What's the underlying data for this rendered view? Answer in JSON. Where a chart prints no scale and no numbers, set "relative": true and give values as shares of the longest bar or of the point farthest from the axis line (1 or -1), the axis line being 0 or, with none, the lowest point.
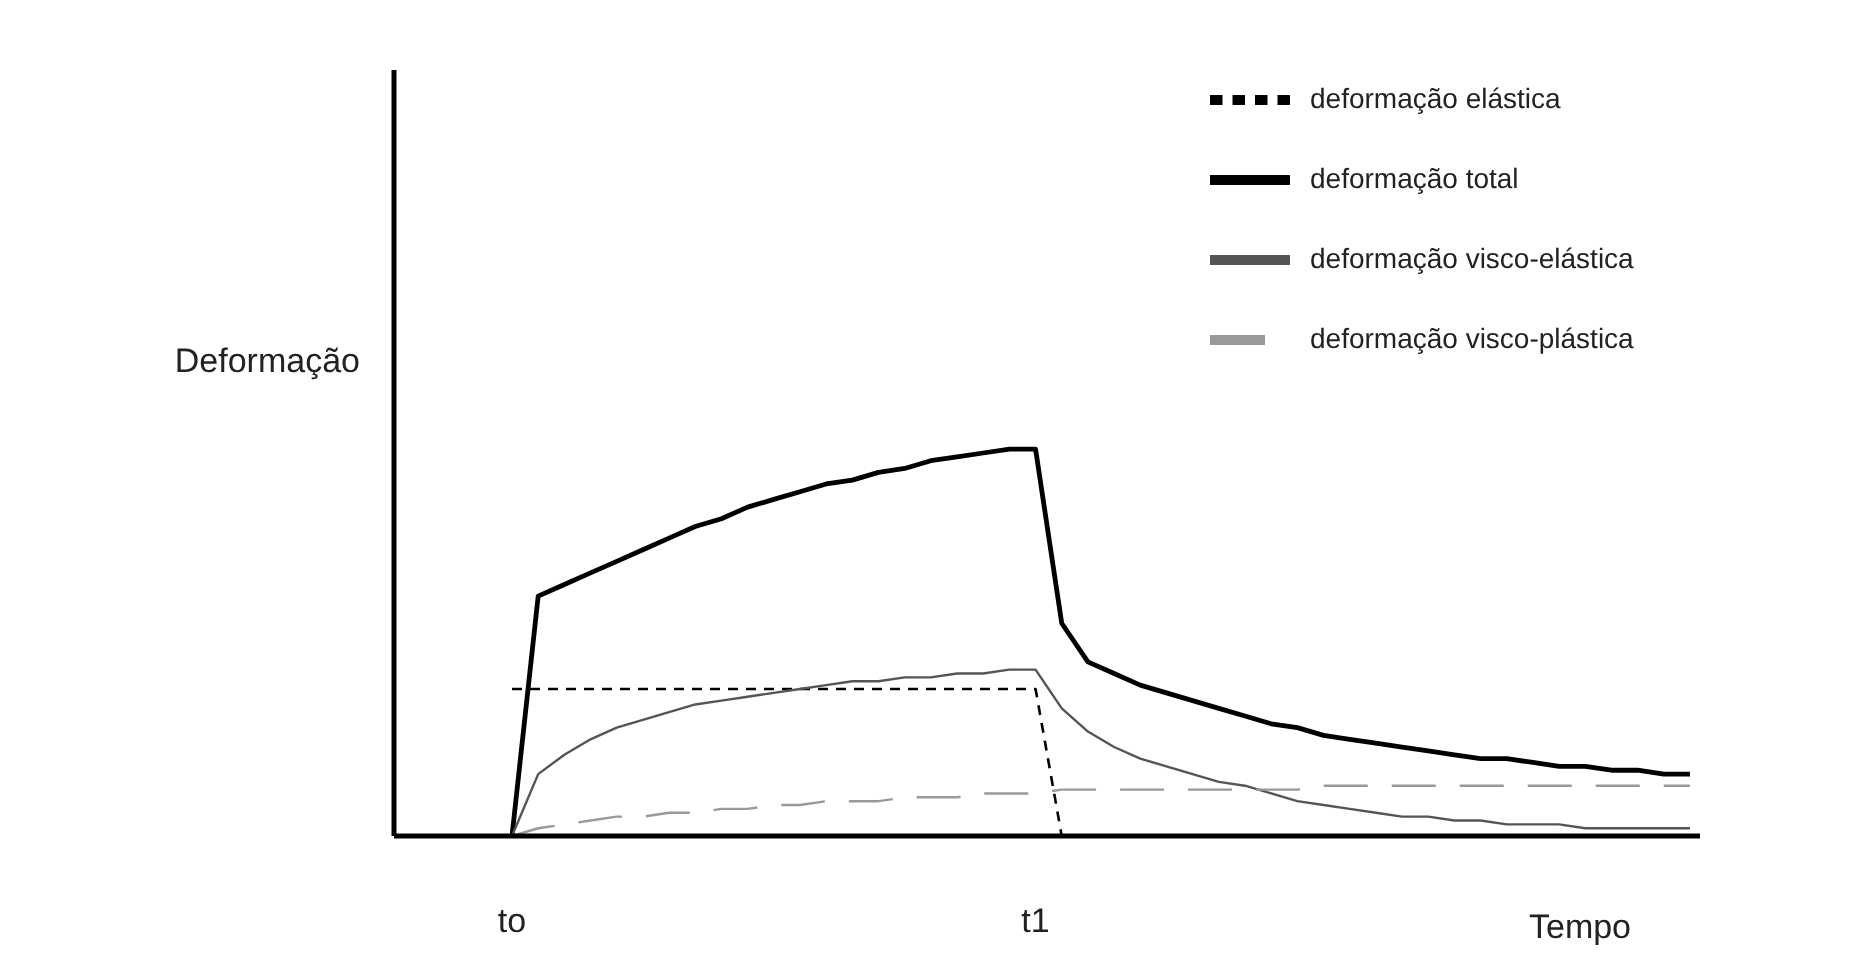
{
  "chart_data": {
    "type": "line",
    "relative": true,
    "ylabel": "Deformação",
    "xlabel": "Tempo",
    "categories": [
      "to",
      null,
      null,
      null,
      null,
      null,
      null,
      null,
      null,
      null,
      null,
      null,
      null,
      null,
      null,
      null,
      null,
      null,
      null,
      null,
      "t1",
      null,
      null,
      null,
      null,
      null,
      null,
      null,
      null,
      null,
      null,
      null,
      null,
      null,
      null,
      null,
      null,
      null,
      null,
      null,
      null,
      null,
      null,
      null,
      null,
      null
    ],
    "legend": "top right",
    "series": [
      {
        "name": "deformação total",
        "color": "#000000",
        "line_style": "solid",
        "values": [
          0,
          0.62,
          0.65,
          0.68,
          0.71,
          0.74,
          0.77,
          0.8,
          0.82,
          0.85,
          0.87,
          0.89,
          0.91,
          0.92,
          0.94,
          0.95,
          0.97,
          0.98,
          0.99,
          1,
          1,
          0.55,
          0.45,
          0.42,
          0.39,
          0.37,
          0.35,
          0.33,
          0.31,
          0.29,
          0.28,
          0.26,
          0.25,
          0.24,
          0.23,
          0.22,
          0.21,
          0.2,
          0.2,
          0.19,
          0.18,
          0.18,
          0.17,
          0.17,
          0.16,
          0.16
        ]
      },
      {
        "name": "deformação elástica",
        "color": "#000000",
        "line_style": "dashed",
        "values": [
          0.38,
          0.38,
          0.38,
          0.38,
          0.38,
          0.38,
          0.38,
          0.38,
          0.38,
          0.38,
          0.38,
          0.38,
          0.38,
          0.38,
          0.38,
          0.38,
          0.38,
          0.38,
          0.38,
          0.38,
          0.38,
          0,
          null,
          null,
          null,
          null,
          null,
          null,
          null,
          null,
          null,
          null,
          null,
          null,
          null,
          null,
          null,
          null,
          null,
          null,
          null,
          null,
          null,
          null,
          null,
          null
        ]
      },
      {
        "name": "deformação visco-elástica",
        "color": "#555555",
        "line_style": "solid",
        "values": [
          0,
          0.16,
          0.21,
          0.25,
          0.28,
          0.3,
          0.32,
          0.34,
          0.35,
          0.36,
          0.37,
          0.38,
          0.39,
          0.4,
          0.4,
          0.41,
          0.41,
          0.42,
          0.42,
          0.43,
          0.43,
          0.33,
          0.27,
          0.23,
          0.2,
          0.18,
          0.16,
          0.14,
          0.13,
          0.11,
          0.09,
          0.08,
          0.07,
          0.06,
          0.05,
          0.05,
          0.04,
          0.04,
          0.03,
          0.03,
          0.03,
          0.02,
          0.02,
          0.02,
          0.02,
          0.02
        ]
      },
      {
        "name": "deformação visco-plástica",
        "color": "#999999",
        "line_style": "dashed",
        "values": [
          0,
          0.02,
          0.03,
          0.04,
          0.05,
          0.05,
          0.06,
          0.06,
          0.07,
          0.07,
          0.08,
          0.08,
          0.09,
          0.09,
          0.09,
          0.1,
          0.1,
          0.1,
          0.11,
          0.11,
          0.11,
          0.12,
          0.12,
          0.12,
          0.12,
          0.12,
          0.12,
          0.12,
          0.12,
          0.12,
          0.12,
          0.13,
          0.13,
          0.13,
          0.13,
          0.13,
          0.13,
          0.13,
          0.13,
          0.13,
          0.13,
          0.13,
          0.13,
          0.13,
          0.13,
          0.13
        ]
      }
    ]
  }
}
